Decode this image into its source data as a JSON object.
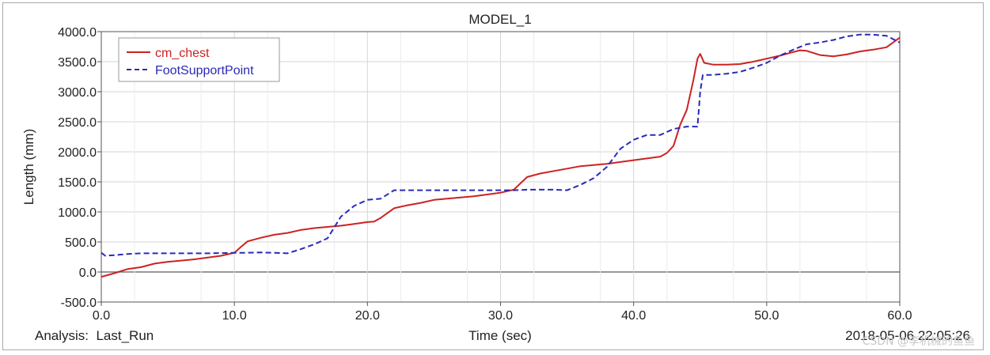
{
  "chart_data": {
    "type": "line",
    "title": "MODEL_1",
    "xlabel": "Time (sec)",
    "ylabel": "Length (mm)",
    "xlim": [
      0,
      60
    ],
    "ylim": [
      -500,
      4000
    ],
    "xticks": [
      0,
      10,
      20,
      30,
      40,
      50,
      60
    ],
    "xtick_labels": [
      "0.0",
      "10.0",
      "20.0",
      "30.0",
      "40.0",
      "50.0",
      "60.0"
    ],
    "yticks": [
      -500,
      0,
      500,
      1000,
      1500,
      2000,
      2500,
      3000,
      3500,
      4000
    ],
    "ytick_labels": [
      "-500.0",
      "0.0",
      "500.0",
      "1000.0",
      "1500.0",
      "2000.0",
      "2500.0",
      "3000.0",
      "3500.0",
      "4000.0"
    ],
    "grid": true,
    "legend_position": "top-left",
    "series": [
      {
        "name": "cm_chest",
        "color": "#cc2222",
        "style": "solid",
        "x": [
          0,
          1,
          2,
          3,
          4,
          5,
          6,
          7,
          8,
          9,
          10,
          10.5,
          11,
          12,
          13,
          14,
          15,
          16,
          17,
          18,
          19,
          20,
          20.5,
          21,
          22,
          23,
          24,
          25,
          26,
          27,
          28,
          29,
          30,
          31,
          32,
          33,
          34,
          35,
          36,
          37,
          38,
          39,
          40,
          41,
          42,
          42.5,
          43,
          43.5,
          44,
          44.5,
          44.8,
          45,
          45.3,
          46,
          47,
          48,
          49,
          50,
          51,
          52,
          52.5,
          53,
          54,
          55,
          56,
          57,
          58,
          59,
          60
        ],
        "y": [
          -80,
          -20,
          50,
          80,
          140,
          170,
          190,
          210,
          240,
          270,
          320,
          420,
          510,
          570,
          620,
          650,
          700,
          730,
          750,
          770,
          800,
          830,
          840,
          900,
          1060,
          1110,
          1150,
          1200,
          1220,
          1240,
          1260,
          1290,
          1320,
          1370,
          1580,
          1640,
          1680,
          1720,
          1760,
          1780,
          1800,
          1830,
          1860,
          1890,
          1920,
          1980,
          2100,
          2450,
          2700,
          3200,
          3550,
          3630,
          3480,
          3450,
          3450,
          3460,
          3500,
          3550,
          3600,
          3660,
          3690,
          3680,
          3610,
          3590,
          3620,
          3670,
          3700,
          3740,
          3900
        ]
      },
      {
        "name": "FootSupportPoint",
        "color": "#2a2ab8",
        "style": "dashed",
        "x": [
          0,
          0.3,
          1,
          2,
          3,
          4,
          5,
          6,
          7,
          8,
          9,
          10,
          11,
          12,
          13,
          14,
          15,
          16,
          17,
          18,
          19,
          20,
          21,
          22,
          23,
          24,
          25,
          26,
          27,
          28,
          29,
          30,
          31,
          32,
          33,
          34,
          35,
          36,
          37,
          38,
          39,
          40,
          41,
          42,
          43,
          44,
          44.8,
          45,
          45.2,
          46,
          47,
          48,
          49,
          50,
          51,
          52,
          53,
          54,
          55,
          56,
          57,
          58,
          59,
          60
        ],
        "y": [
          320,
          270,
          280,
          300,
          310,
          310,
          310,
          310,
          310,
          310,
          315,
          320,
          320,
          325,
          320,
          310,
          380,
          460,
          560,
          920,
          1100,
          1200,
          1220,
          1360,
          1360,
          1360,
          1360,
          1360,
          1360,
          1360,
          1360,
          1360,
          1360,
          1370,
          1370,
          1370,
          1360,
          1450,
          1560,
          1750,
          2050,
          2200,
          2280,
          2280,
          2380,
          2420,
          2420,
          3000,
          3280,
          3280,
          3300,
          3330,
          3400,
          3480,
          3600,
          3700,
          3790,
          3820,
          3860,
          3920,
          3950,
          3950,
          3930,
          3820
        ]
      }
    ]
  },
  "footer": {
    "analysis": "Analysis:  Last_Run",
    "timestamp": "2018-05-06 22:05:26"
  },
  "watermark": "CSDN @李机械的鱼鱼"
}
